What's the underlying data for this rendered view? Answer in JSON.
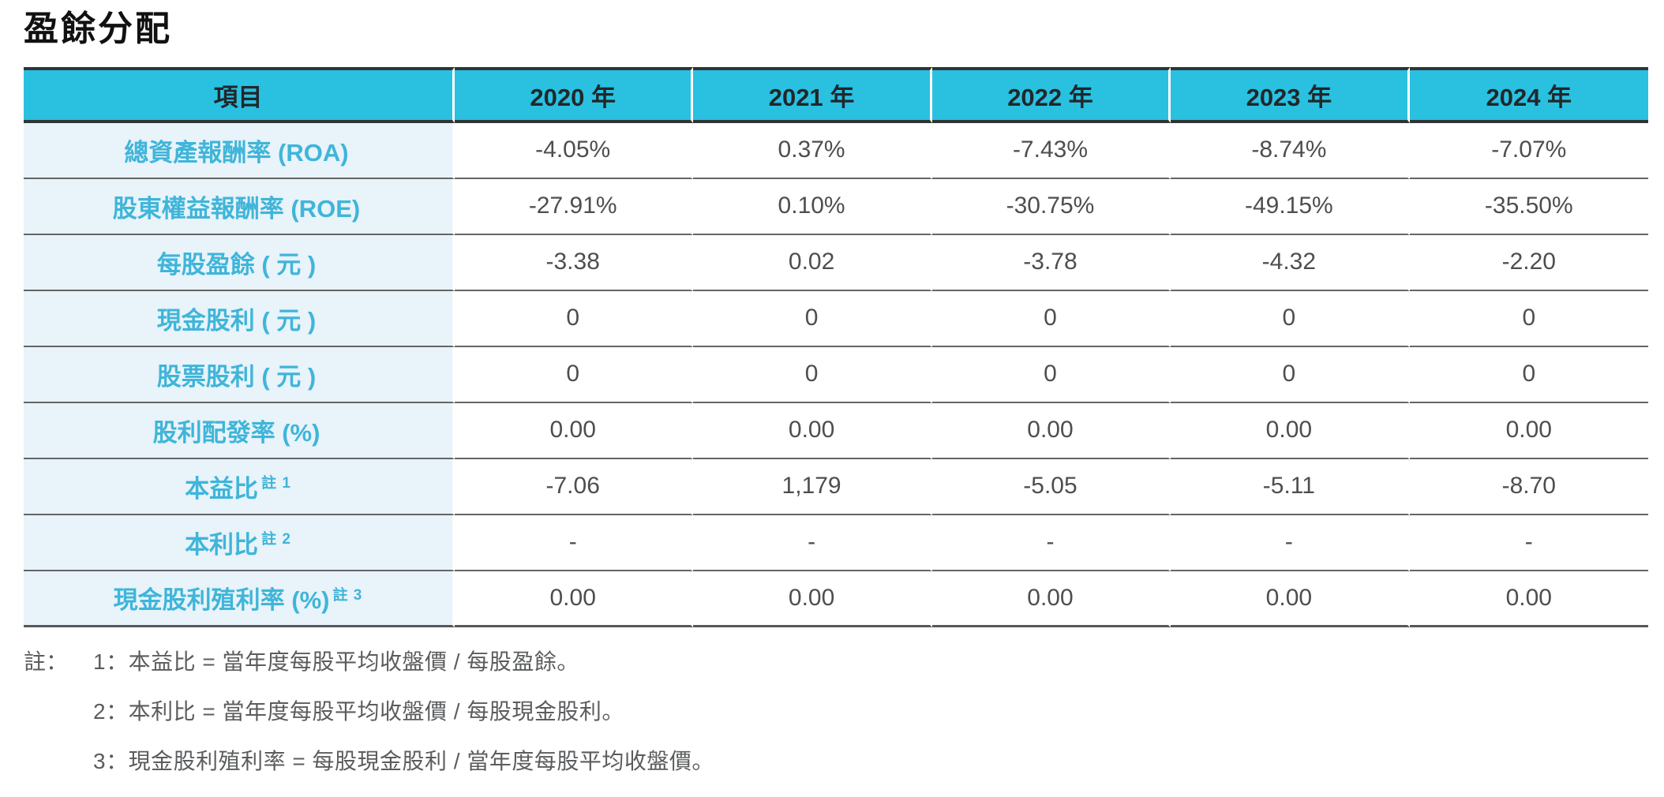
{
  "page": {
    "title": "盈餘分配"
  },
  "colors": {
    "header_bg": "#2AC0E0",
    "header_text": "#21272A",
    "label_col_bg": "#E8F3FA",
    "label_text": "#3FB5D9",
    "data_text": "#4D4E50",
    "row_divider": "#646567",
    "heavy_border": "#303436",
    "footnote_text": "#5B5C5E"
  },
  "table": {
    "header": {
      "item_label": "項目",
      "years": [
        "2020 年",
        "2021 年",
        "2022 年",
        "2023 年",
        "2024 年"
      ]
    },
    "rows": [
      {
        "label": "總資產報酬率 (ROA)",
        "note": "",
        "values": [
          "-4.05%",
          "0.37%",
          "-7.43%",
          "-8.74%",
          "-7.07%"
        ]
      },
      {
        "label": "股東權益報酬率 (ROE)",
        "note": "",
        "values": [
          "-27.91%",
          "0.10%",
          "-30.75%",
          "-49.15%",
          "-35.50%"
        ]
      },
      {
        "label": "每股盈餘 ( 元 )",
        "note": "",
        "values": [
          "-3.38",
          "0.02",
          "-3.78",
          "-4.32",
          "-2.20"
        ]
      },
      {
        "label": "現金股利 ( 元 )",
        "note": "",
        "values": [
          "0",
          "0",
          "0",
          "0",
          "0"
        ]
      },
      {
        "label": "股票股利 ( 元 )",
        "note": "",
        "values": [
          "0",
          "0",
          "0",
          "0",
          "0"
        ]
      },
      {
        "label": "股利配發率 (%)",
        "note": "",
        "values": [
          "0.00",
          "0.00",
          "0.00",
          "0.00",
          "0.00"
        ]
      },
      {
        "label": "本益比",
        "note": "註 1",
        "values": [
          "-7.06",
          "1,179",
          "-5.05",
          "-5.11",
          "-8.70"
        ]
      },
      {
        "label": "本利比",
        "note": "註 2",
        "values": [
          "-",
          "-",
          "-",
          "-",
          "-"
        ]
      },
      {
        "label": "現金股利殖利率 (%)",
        "note": "註 3",
        "values": [
          "0.00",
          "0.00",
          "0.00",
          "0.00",
          "0.00"
        ]
      }
    ]
  },
  "footnotes": {
    "prefix": "註：",
    "items": [
      "1：本益比 = 當年度每股平均收盤價 / 每股盈餘。",
      "2：本利比 = 當年度每股平均收盤價 / 每股現金股利。",
      "3：現金股利殖利率 = 每股現金股利 / 當年度每股平均收盤價。"
    ]
  }
}
